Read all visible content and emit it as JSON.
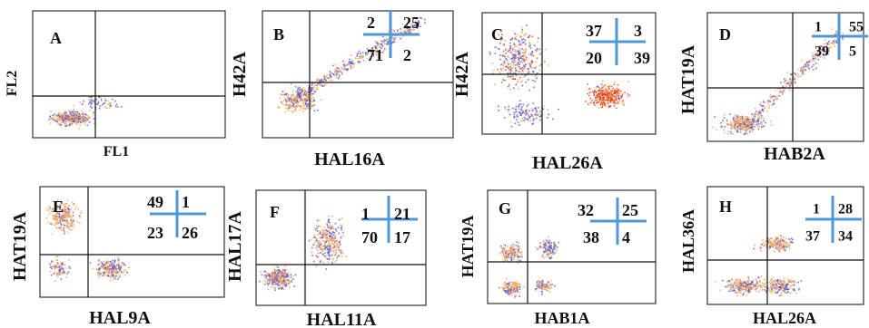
{
  "colors": {
    "orange": "#f4a45a",
    "blue": "#5a5ad6",
    "red": "#e84a1c",
    "quad_cross": "#4f97d6",
    "frame": "#333333",
    "gate": "#111111"
  },
  "panels": [
    {
      "letter": "A",
      "xlabel": "FL1",
      "ylabel": "FL2",
      "quadrants": null
    },
    {
      "letter": "B",
      "xlabel": "HAL16A",
      "ylabel": "H42A",
      "quadrants": {
        "ul": "2",
        "ur": "25",
        "ll": "71",
        "lr": "2"
      }
    },
    {
      "letter": "C",
      "xlabel": "HAL26A",
      "ylabel": "H42A",
      "quadrants": {
        "ul": "37",
        "ur": "3",
        "ll": "20",
        "lr": "39"
      }
    },
    {
      "letter": "D",
      "xlabel": "HAB2A",
      "ylabel": "HAT19A",
      "quadrants": {
        "ul": "1",
        "ur": "55",
        "ll": "39",
        "lr": "5"
      }
    },
    {
      "letter": "E",
      "xlabel": "HAL9A",
      "ylabel": "HAT19A",
      "quadrants": {
        "ul": "49",
        "ur": "1",
        "ll": "23",
        "lr": "26"
      }
    },
    {
      "letter": "F",
      "xlabel": "HAL11A",
      "ylabel": "HAL17A",
      "quadrants": {
        "ul": "1",
        "ur": "21",
        "ll": "70",
        "lr": "17"
      }
    },
    {
      "letter": "G",
      "xlabel": "HAB1A",
      "ylabel": "HAT19A",
      "quadrants": {
        "ul": "32",
        "ur": "25",
        "ll": "38",
        "lr": "4"
      }
    },
    {
      "letter": "H",
      "xlabel": "HAL26A",
      "ylabel": "HAL36A",
      "quadrants": {
        "ul": "1",
        "ur": "28",
        "ll": "37",
        "lr": "34"
      }
    }
  ]
}
